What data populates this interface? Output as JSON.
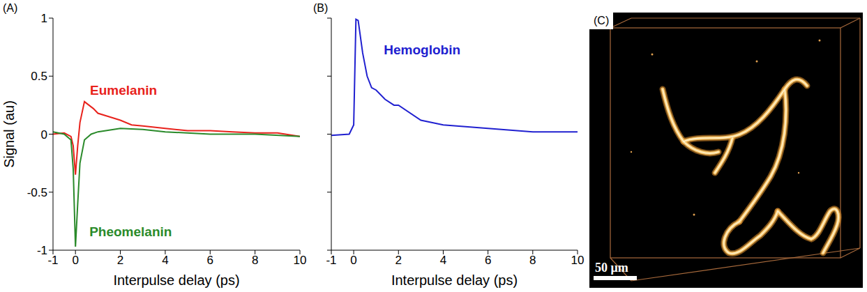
{
  "chart_data": [
    {
      "type": "line",
      "panel": "(A)",
      "x_label": "Interpulse delay (ps)",
      "y_label": "Signal (au)",
      "xlim": [
        -1,
        10
      ],
      "xticks": [
        -1,
        0,
        2,
        4,
        6,
        8,
        10
      ],
      "ylim": [
        -1,
        1
      ],
      "yticks": [
        -1,
        -0.5,
        0,
        0.5,
        1
      ],
      "series": [
        {
          "name": "Eumelanin",
          "color": "#e8221c",
          "x": [
            -1,
            -0.5,
            -0.2,
            -0.1,
            0,
            0.1,
            0.2,
            0.4,
            0.6,
            0.8,
            1,
            1.5,
            2,
            2.5,
            3,
            4,
            5,
            6,
            7,
            8,
            9,
            10
          ],
          "values": [
            0,
            0.01,
            -0.02,
            -0.1,
            -0.35,
            -0.1,
            0.1,
            0.28,
            0.25,
            0.22,
            0.18,
            0.15,
            0.12,
            0.08,
            0.07,
            0.05,
            0.03,
            0.03,
            0.02,
            0.01,
            0.01,
            -0.02
          ]
        },
        {
          "name": "Pheomelanin",
          "color": "#2a8a2a",
          "x": [
            -1,
            -0.5,
            -0.2,
            -0.1,
            0,
            0.1,
            0.2,
            0.4,
            0.7,
            1,
            2,
            3,
            4,
            6,
            8,
            10
          ],
          "values": [
            0.02,
            0,
            -0.05,
            -0.3,
            -0.97,
            -0.6,
            -0.25,
            -0.05,
            0,
            0.02,
            0.05,
            0.04,
            0.02,
            0,
            0,
            -0.02
          ]
        }
      ]
    },
    {
      "type": "line",
      "panel": "(B)",
      "x_label": "Interpulse delay (ps)",
      "xlim": [
        -1,
        10
      ],
      "xticks": [
        -1,
        0,
        2,
        4,
        6,
        8,
        10
      ],
      "ylim": [
        -1,
        1
      ],
      "yticks": [
        -1,
        -0.5,
        0,
        0.5,
        1
      ],
      "tick_labels": "x",
      "series": [
        {
          "name": "Hemoglobin",
          "color": "#2020d0",
          "x": [
            -1,
            -0.2,
            0,
            0.1,
            0.2,
            0.4,
            0.6,
            0.8,
            1,
            1.4,
            1.8,
            2,
            3,
            4,
            6,
            8,
            10
          ],
          "values": [
            -0.01,
            0,
            0.08,
            0.99,
            0.98,
            0.7,
            0.5,
            0.4,
            0.38,
            0.3,
            0.25,
            0.25,
            0.12,
            0.08,
            0.05,
            0.02,
            0.02
          ]
        }
      ]
    }
  ],
  "image": {
    "panel": "(C)",
    "scale_bar": "50 μm"
  }
}
